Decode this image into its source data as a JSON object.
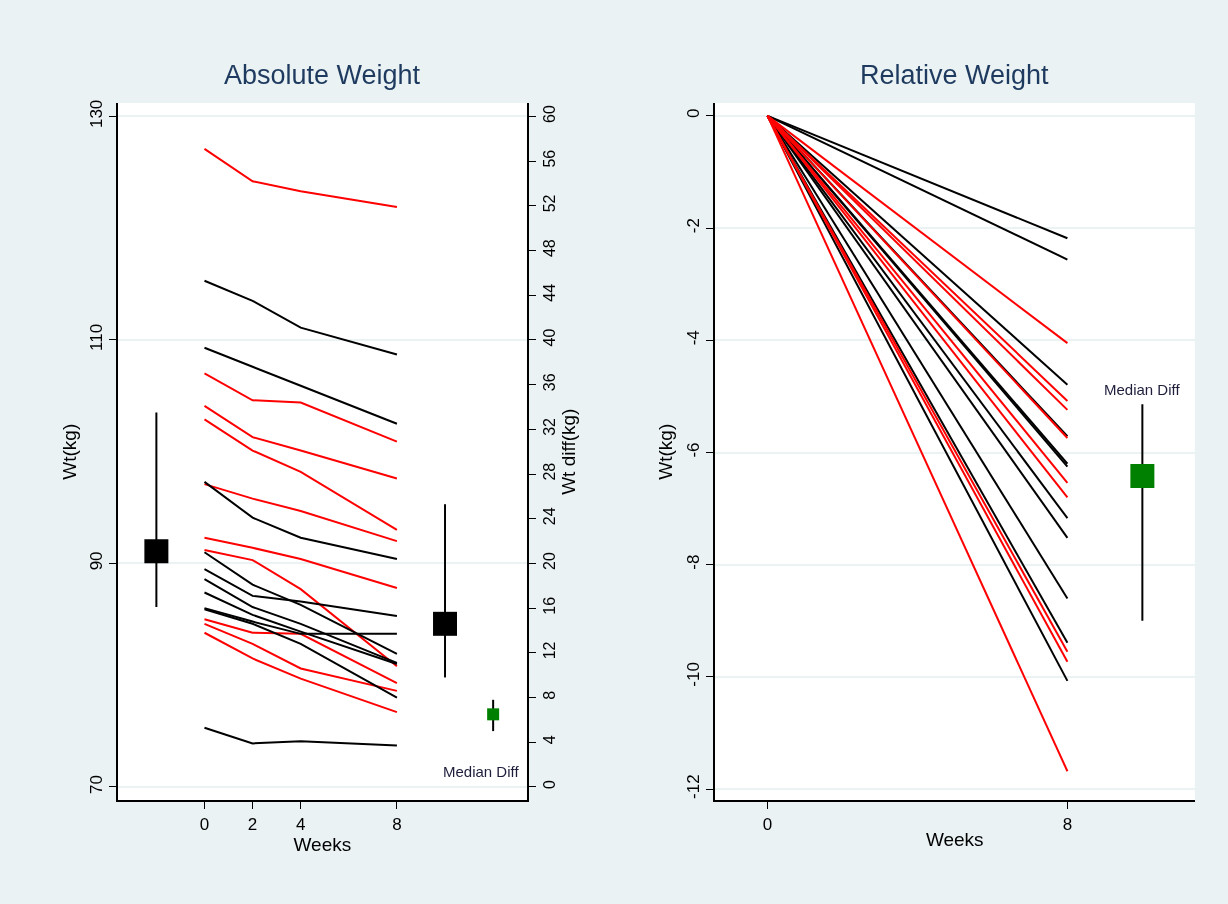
{
  "chart_data": [
    {
      "type": "line",
      "title": "Absolute Weight",
      "xlabel": "Weeks",
      "ylabel": "Wt(kg)",
      "y2label": "Wt diff(kg)",
      "x": [
        0,
        2,
        4,
        8
      ],
      "xlim": [
        -3.6,
        13.4
      ],
      "xticks": [
        0,
        2,
        4,
        8
      ],
      "ylim": [
        68.8,
        131.2
      ],
      "yticks": [
        70,
        90,
        110,
        130
      ],
      "y2lim": [
        -1.2,
        61.2
      ],
      "y2ticks": [
        0,
        4,
        8,
        12,
        16,
        20,
        24,
        28,
        32,
        36,
        40,
        44,
        48,
        52,
        56,
        60
      ],
      "grid": "y",
      "series": [
        {
          "color": "#ff0000",
          "values": [
            127.1,
            124.2,
            123.3,
            121.9
          ]
        },
        {
          "color": "#ff0000",
          "values": [
            107.0,
            104.6,
            104.4,
            100.9
          ]
        },
        {
          "color": "#ff0000",
          "values": [
            104.1,
            101.3,
            100.1,
            97.6
          ]
        },
        {
          "color": "#ff0000",
          "values": [
            102.9,
            100.1,
            98.2,
            93.0
          ]
        },
        {
          "color": "#ff0000",
          "values": [
            97.1,
            95.8,
            94.7,
            92.0
          ]
        },
        {
          "color": "#ff0000",
          "values": [
            92.3,
            91.4,
            90.4,
            87.8
          ]
        },
        {
          "color": "#ff0000",
          "values": [
            91.2,
            90.3,
            87.7,
            80.8
          ]
        },
        {
          "color": "#ff0000",
          "values": [
            85.0,
            83.8,
            83.7,
            79.3
          ]
        },
        {
          "color": "#ff0000",
          "values": [
            84.6,
            82.8,
            80.6,
            78.6
          ]
        },
        {
          "color": "#ff0000",
          "values": [
            83.8,
            81.5,
            79.7,
            76.7
          ]
        },
        {
          "color": "#000000",
          "values": [
            115.3,
            113.5,
            111.1,
            108.7
          ]
        },
        {
          "color": "#000000",
          "values": [
            109.3,
            107.6,
            105.9,
            102.5
          ]
        },
        {
          "color": "#000000",
          "values": [
            97.3,
            94.1,
            92.3,
            90.4
          ]
        },
        {
          "color": "#000000",
          "values": [
            91.0,
            88.1,
            86.3,
            81.9
          ]
        },
        {
          "color": "#000000",
          "values": [
            89.5,
            87.1,
            86.6,
            85.3
          ]
        },
        {
          "color": "#000000",
          "values": [
            88.6,
            86.1,
            84.6,
            81.1
          ]
        },
        {
          "color": "#000000",
          "values": [
            87.4,
            85.4,
            83.9,
            81.0
          ]
        },
        {
          "color": "#000000",
          "values": [
            86.0,
            84.8,
            83.7,
            83.7
          ]
        },
        {
          "color": "#000000",
          "values": [
            85.9,
            84.6,
            82.8,
            78.0
          ]
        },
        {
          "color": "#000000",
          "values": [
            75.3,
            73.9,
            74.1,
            73.7
          ]
        },
        {
          "type": "scatter",
          "marker": "square",
          "color": "#000000",
          "x": [
            -2,
            10
          ],
          "values": [
            91.1,
            84.6
          ],
          "errors": [
            [
              86.1,
              103.5
            ],
            [
              79.8,
              95.3
            ]
          ]
        },
        {
          "type": "scatter",
          "marker": "square",
          "color": "#008000",
          "axis": "y2",
          "x": [
            12
          ],
          "values": [
            6.5
          ],
          "errors": [
            [
              5.0,
              7.8
            ]
          ]
        }
      ],
      "annotations": [
        "Median Diff"
      ]
    },
    {
      "type": "line",
      "title": "Relative Weight",
      "xlabel": "Weeks",
      "ylabel": "Wt(kg)",
      "x": [
        0,
        8
      ],
      "xlim": [
        -1.41,
        11.4
      ],
      "xticks": [
        0,
        8
      ],
      "ylim": [
        -12.2,
        0.23
      ],
      "yticks": [
        -12,
        -10,
        -8,
        -6,
        -4,
        -2,
        0
      ],
      "grid": "y",
      "series": [
        {
          "color": "#000000",
          "values": [
            0,
            -2.18
          ]
        },
        {
          "color": "#000000",
          "values": [
            0,
            -2.56
          ]
        },
        {
          "color": "#000000",
          "values": [
            0,
            -4.79
          ]
        },
        {
          "color": "#000000",
          "values": [
            0,
            -5.71
          ]
        },
        {
          "color": "#000000",
          "values": [
            0,
            -6.2
          ]
        },
        {
          "color": "#000000",
          "values": [
            0,
            -6.25
          ]
        },
        {
          "color": "#000000",
          "values": [
            0,
            -7.17
          ]
        },
        {
          "color": "#000000",
          "values": [
            0,
            -7.52
          ]
        },
        {
          "color": "#000000",
          "values": [
            0,
            -8.6
          ]
        },
        {
          "color": "#000000",
          "values": [
            0,
            -9.39
          ]
        },
        {
          "color": "#000000",
          "values": [
            0,
            -10.07
          ]
        },
        {
          "color": "#ff0000",
          "values": [
            0,
            -4.05
          ]
        },
        {
          "color": "#ff0000",
          "values": [
            0,
            -5.08
          ]
        },
        {
          "color": "#ff0000",
          "values": [
            0,
            -5.24
          ]
        },
        {
          "color": "#ff0000",
          "values": [
            0,
            -5.74
          ]
        },
        {
          "color": "#ff0000",
          "values": [
            0,
            -6.54
          ]
        },
        {
          "color": "#ff0000",
          "values": [
            0,
            -6.8
          ]
        },
        {
          "color": "#ff0000",
          "values": [
            0,
            -9.55
          ]
        },
        {
          "color": "#ff0000",
          "values": [
            0,
            -9.73
          ]
        },
        {
          "color": "#ff0000",
          "values": [
            0,
            -11.68
          ]
        },
        {
          "type": "scatter",
          "marker": "square",
          "color": "#008000",
          "x": [
            10
          ],
          "values": [
            -6.42
          ],
          "errors": [
            [
              -9.0,
              -5.14
            ]
          ]
        }
      ],
      "annotations": [
        "Median Diff"
      ]
    }
  ]
}
